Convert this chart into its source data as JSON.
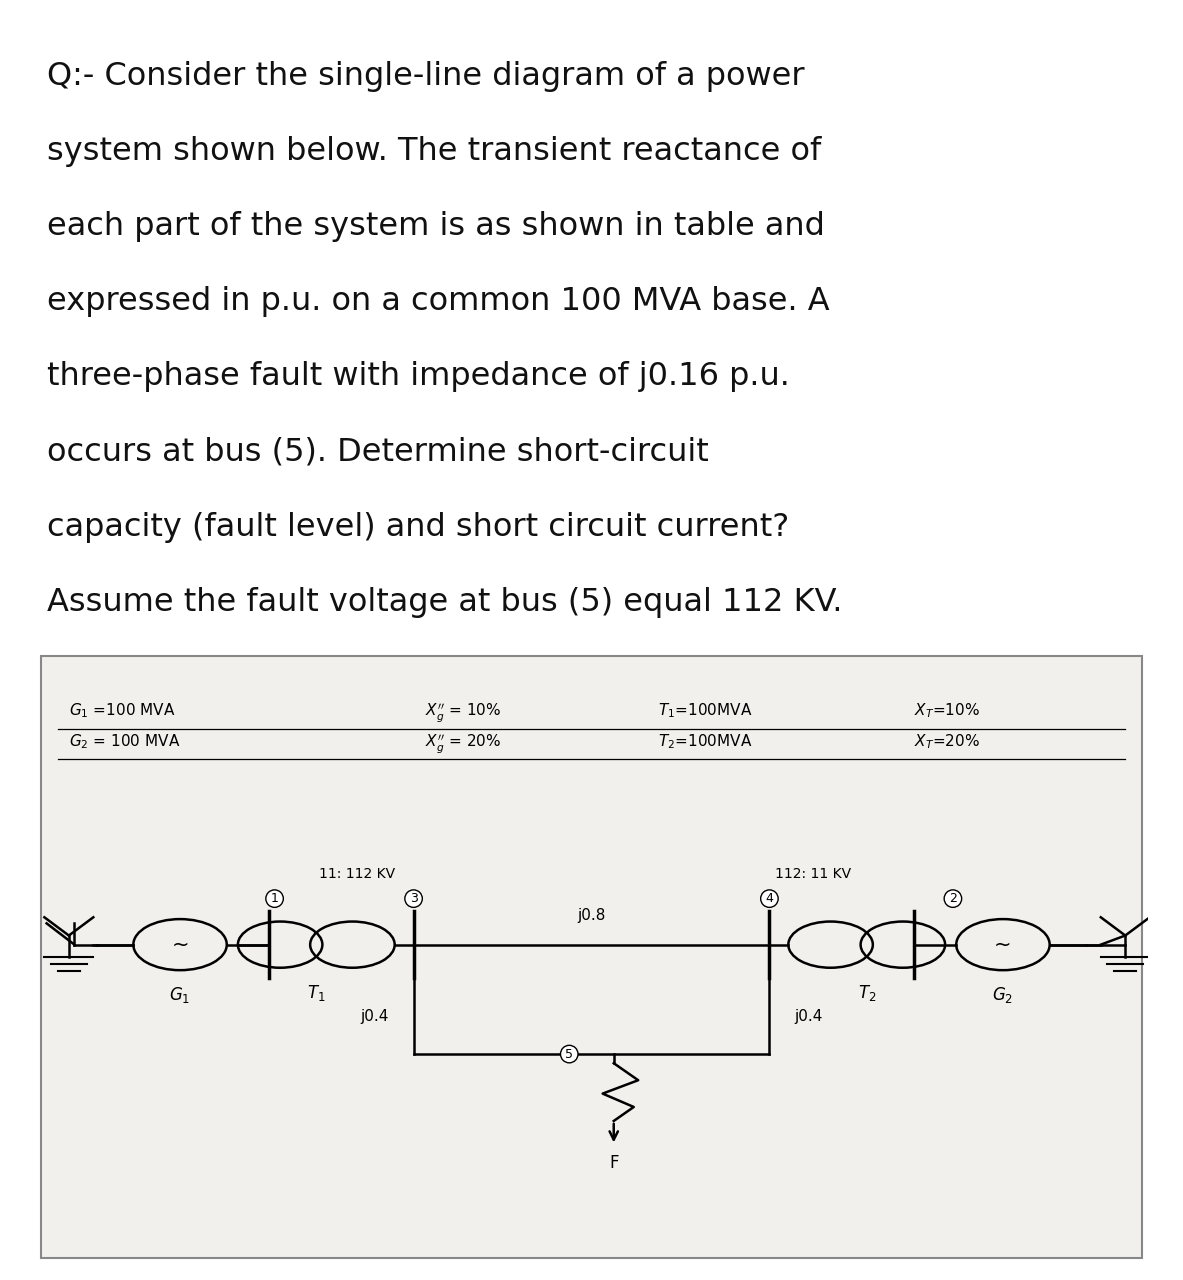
{
  "question_lines": [
    "Q:- Consider the single-line diagram of a power",
    "system shown below. The transient reactance of",
    "each part of the system is as shown in table and",
    "expressed in p.u. on a common 100 MVA base. A",
    "three-phase fault with impedance of j0.16 p.u.",
    "occurs at bus (5). Determine short-circuit",
    "capacity (fault level) and short circuit current?",
    "Assume the fault voltage at bus (5) equal 112 KV."
  ],
  "q_fontsize": 23,
  "table_row1_col1": "$G_1$ =100 MVA",
  "table_row1_col2": "$X_g''$ = 10%",
  "table_row1_col3": "$T_1$=100MVA",
  "table_row1_col4": "$X_T$=10%",
  "table_row2_col1": "$G_2$ = 100 MVA",
  "table_row2_col2": "$X_g''$ = 20%",
  "table_row2_col3": "$T_2$=100MVA",
  "table_row2_col4": "$X_T$=20%",
  "table_fontsize": 11,
  "diag_fontsize": 11,
  "bg_color": "#ffffff",
  "panel_bg": "#f2f0ec",
  "text_color": "#111111",
  "line_color": "#000000"
}
